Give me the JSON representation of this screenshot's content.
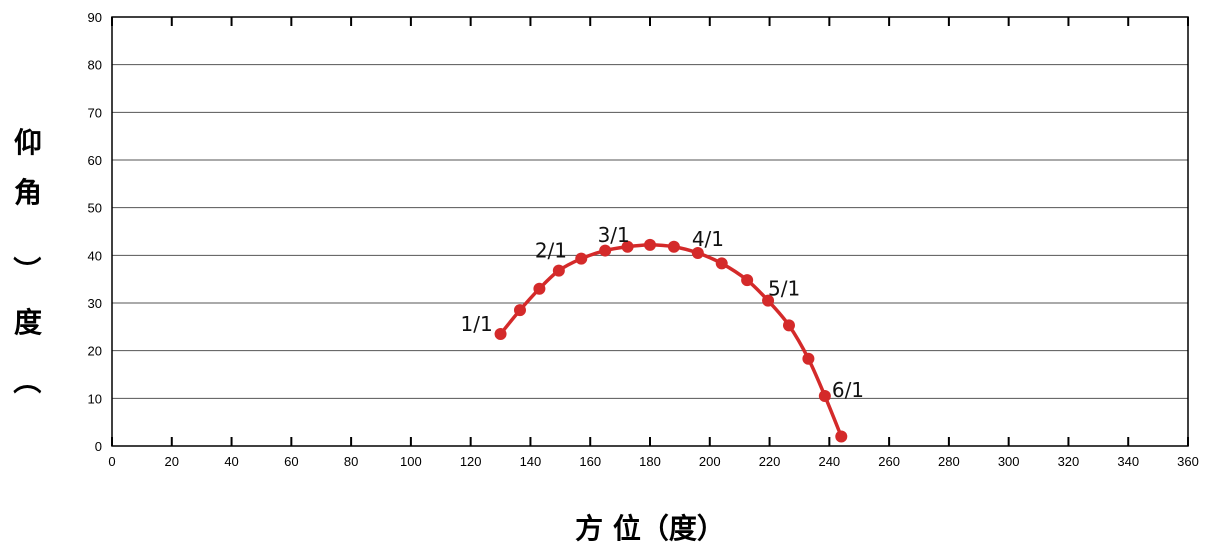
{
  "chart_data": {
    "type": "line",
    "xlabel": "方 位（度）",
    "ylabel_chars": [
      "仰",
      "角",
      "（",
      "度",
      "）"
    ],
    "xlim": [
      0,
      360
    ],
    "ylim": [
      0,
      90
    ],
    "x_ticks": [
      0,
      20,
      40,
      60,
      80,
      100,
      120,
      140,
      160,
      180,
      200,
      220,
      240,
      260,
      280,
      300,
      320,
      340,
      360
    ],
    "y_ticks": [
      0,
      10,
      20,
      30,
      40,
      50,
      60,
      70,
      80,
      90
    ],
    "grid": "horizontal",
    "line_color": "#d42a2a",
    "series": [
      {
        "points": [
          [
            130,
            23.5
          ],
          [
            136.5,
            28.5
          ],
          [
            143,
            33
          ],
          [
            149.5,
            36.8
          ],
          [
            157,
            39.3
          ],
          [
            165,
            41
          ],
          [
            172.5,
            41.8
          ],
          [
            180,
            42.2
          ],
          [
            188,
            41.8
          ],
          [
            196,
            40.5
          ],
          [
            204,
            38.3
          ],
          [
            212.5,
            34.8
          ],
          [
            219.5,
            30.5
          ],
          [
            226.5,
            25.3
          ],
          [
            233,
            18.3
          ],
          [
            238.5,
            10.5
          ],
          [
            244,
            2
          ]
        ]
      }
    ],
    "annotations": [
      {
        "text": "1/1",
        "x": 130,
        "y": 23.5
      },
      {
        "text": "2/1",
        "x": 149.5,
        "y": 36.8
      },
      {
        "text": "3/1",
        "x": 172.5,
        "y": 41.8
      },
      {
        "text": "4/1",
        "x": 196,
        "y": 40.5
      },
      {
        "text": "5/1",
        "x": 219.5,
        "y": 30.5
      },
      {
        "text": "6/1",
        "x": 238.5,
        "y": 10.5
      }
    ]
  }
}
